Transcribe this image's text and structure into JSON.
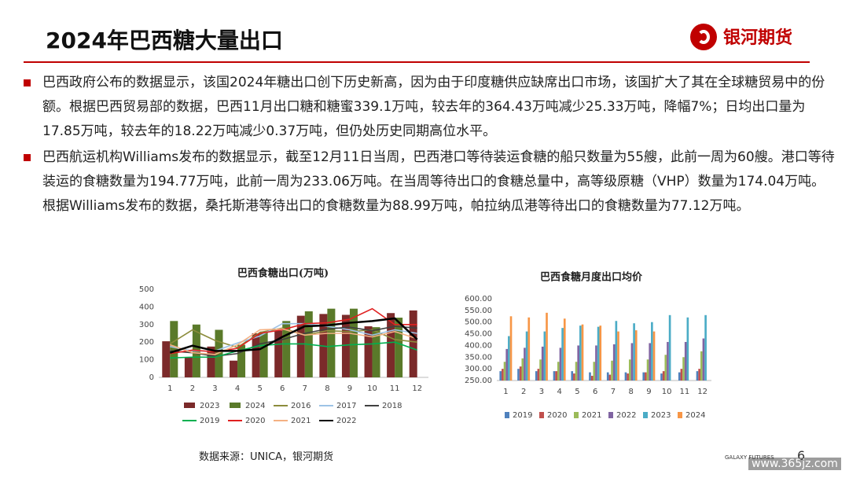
{
  "header": {
    "title": "2024年巴西糖大量出口",
    "logo": "银河期货"
  },
  "bullets": [
    "巴西政府公布的数据显示，该国2024年糖出口创下历史新高，因为由于印度糖供应缺席出口市场，该国扩大了其在全球糖贸易中的份额。根据巴西贸易部的数据，巴西11月出口糖和糖蜜339.1万吨，较去年的364.43万吨减少25.33万吨，降幅7%；日均出口量为17.85万吨，较去年的18.22万吨减少0.37万吨，但仍处历史同期高位水平。",
    "巴西航运机构Williams发布的数据显示，截至12月11日当周，巴西港口等待装运食糖的船只数量为55艘，此前一周为60艘。港口等待装运的食糖数量为194.77万吨，此前一周为233.06万吨。在当周等待出口的食糖总量中，高等级原糖（VHP）数量为174.04万吨。　 根据Williams发布的数据，桑托斯港等待出口的食糖数量为88.99万吨，帕拉纳瓜港等待出口的食糖数量为77.12万吨。"
  ],
  "source": "数据来源：UNICA，银河期货",
  "footer": {
    "brand": "GALAXY FUTURES",
    "page": "6",
    "watermark": "www.365jz.com"
  },
  "chart_data": [
    {
      "type": "bar_line",
      "title": "巴西食糖出口(万吨)",
      "categories": [
        "1",
        "2",
        "3",
        "4",
        "5",
        "6",
        "7",
        "8",
        "9",
        "10",
        "11",
        "12"
      ],
      "ylim": [
        0,
        500
      ],
      "yticks": [
        0,
        100,
        200,
        300,
        400,
        500
      ],
      "grid": false,
      "legend": "bottom",
      "series": [
        {
          "name": "2023",
          "type": "bar",
          "color": "#7b2a2a",
          "values": [
            205,
            115,
            175,
            95,
            250,
            265,
            350,
            360,
            355,
            290,
            365,
            380
          ]
        },
        {
          "name": "2024",
          "type": "bar",
          "color": "#5a7a2a",
          "values": [
            320,
            300,
            270,
            185,
            260,
            320,
            375,
            390,
            390,
            285,
            339,
            null
          ]
        },
        {
          "name": "2016",
          "type": "line",
          "color": "#8c8c3c",
          "values": [
            190,
            270,
            210,
            170,
            255,
            280,
            240,
            265,
            260,
            270,
            215,
            200
          ]
        },
        {
          "name": "2017",
          "type": "line",
          "color": "#9dc3e6",
          "values": [
            175,
            150,
            150,
            195,
            235,
            305,
            305,
            290,
            270,
            240,
            270,
            250
          ]
        },
        {
          "name": "2018",
          "type": "line",
          "color": "#404040",
          "values": [
            150,
            140,
            120,
            135,
            190,
            215,
            250,
            275,
            285,
            265,
            290,
            280
          ]
        },
        {
          "name": "2019",
          "type": "line",
          "color": "#00b050",
          "values": [
            110,
            115,
            115,
            150,
            180,
            190,
            190,
            175,
            185,
            190,
            200,
            155
          ]
        },
        {
          "name": "2020",
          "type": "line",
          "color": "#e02020",
          "values": [
            135,
            155,
            145,
            165,
            250,
            270,
            305,
            310,
            330,
            390,
            300,
            300
          ]
        },
        {
          "name": "2021",
          "type": "line",
          "color": "#f4b183",
          "values": [
            185,
            140,
            130,
            185,
            270,
            275,
            240,
            250,
            250,
            230,
            260,
            220
          ]
        },
        {
          "name": "2022",
          "type": "line",
          "color": "#000000",
          "values": [
            140,
            180,
            150,
            150,
            160,
            230,
            290,
            295,
            310,
            320,
            335,
            215
          ]
        }
      ]
    },
    {
      "type": "bar",
      "title": "巴西食糖月度出口均价",
      "categories": [
        "1",
        "2",
        "3",
        "4",
        "5",
        "6",
        "7",
        "8",
        "9",
        "10",
        "11",
        "12"
      ],
      "ylim": [
        250,
        600
      ],
      "yticks": [
        {
          "value": 250,
          "label": "250.00"
        },
        {
          "value": 300,
          "label": "300.00"
        },
        {
          "value": 350,
          "label": "350.00"
        },
        {
          "value": 400,
          "label": "400.00"
        },
        {
          "value": 450,
          "label": "450.00"
        },
        {
          "value": 500,
          "label": "500.00"
        },
        {
          "value": 550,
          "label": "550.00"
        },
        {
          "value": 600,
          "label": "600.00"
        }
      ],
      "grid": false,
      "legend": "bottom",
      "series": [
        {
          "name": "2019",
          "color": "#4f81bd",
          "values": [
            290,
            300,
            290,
            290,
            290,
            285,
            285,
            285,
            285,
            280,
            285,
            290
          ]
        },
        {
          "name": "2020",
          "color": "#c0504d",
          "values": [
            300,
            310,
            300,
            290,
            280,
            270,
            275,
            280,
            285,
            290,
            300,
            300
          ]
        },
        {
          "name": "2021",
          "color": "#9bbb59",
          "values": [
            330,
            345,
            340,
            330,
            330,
            330,
            335,
            340,
            340,
            360,
            350,
            375
          ]
        },
        {
          "name": "2022",
          "color": "#8064a2",
          "values": [
            385,
            390,
            395,
            390,
            400,
            400,
            405,
            410,
            410,
            415,
            415,
            430
          ]
        },
        {
          "name": "2023",
          "color": "#4bacc6",
          "values": [
            440,
            460,
            460,
            475,
            485,
            480,
            505,
            495,
            500,
            530,
            520,
            530
          ]
        },
        {
          "name": "2024",
          "color": "#f79646",
          "values": [
            525,
            520,
            540,
            515,
            490,
            485,
            460,
            465,
            460,
            null,
            null,
            null
          ]
        }
      ]
    }
  ]
}
